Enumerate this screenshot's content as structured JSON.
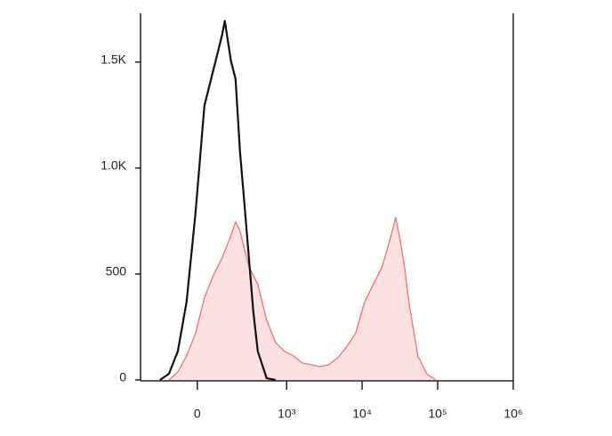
{
  "chart_data": {
    "type": "histogram-overlay",
    "xscale": "biexponential",
    "xlim": [
      -360,
      1000000
    ],
    "xticks": [
      0,
      {
        "value": 1000,
        "label": "10³"
      },
      {
        "value": 10000,
        "label": "10⁴"
      },
      {
        "value": 100000,
        "label": "10⁵"
      },
      {
        "value": 1000000,
        "label": "10⁶"
      }
    ],
    "ylim": [
      0,
      1730
    ],
    "yticks": [
      0,
      500,
      {
        "value": 1000,
        "label": "1.0K"
      },
      {
        "value": 1500,
        "label": "1.5K"
      }
    ],
    "series": [
      {
        "color": "#f07272",
        "fill": "#fbe1e1",
        "x": [
          -129,
          -83,
          -44,
          -7,
          29,
          67,
          110,
          161,
          191,
          224,
          304,
          406,
          538,
          709,
          933,
          1228,
          1613,
          2112,
          2772,
          3634,
          4765,
          6250,
          8200,
          10760,
          14100,
          18490,
          24260,
          27770,
          31800,
          36400,
          41670,
          54650,
          71700,
          94000
        ],
        "values": [
          0,
          38,
          114,
          219,
          388,
          493,
          577,
          683,
          746,
          704,
          535,
          451,
          282,
          177,
          135,
          114,
          80,
          72,
          63,
          72,
          105,
          156,
          219,
          367,
          451,
          535,
          683,
          767,
          662,
          535,
          367,
          114,
          29,
          0
        ]
      },
      {
        "color": "#111111",
        "x": [
          -185,
          -129,
          -83,
          -44,
          -7,
          29,
          67,
          88,
          110,
          124,
          161,
          191,
          224,
          262,
          304,
          351,
          406,
          538,
          709
        ],
        "values": [
          0,
          29,
          135,
          367,
          788,
          1294,
          1462,
          1547,
          1631,
          1694,
          1504,
          1420,
          1083,
          830,
          577,
          325,
          135,
          8,
          0
        ]
      }
    ]
  }
}
